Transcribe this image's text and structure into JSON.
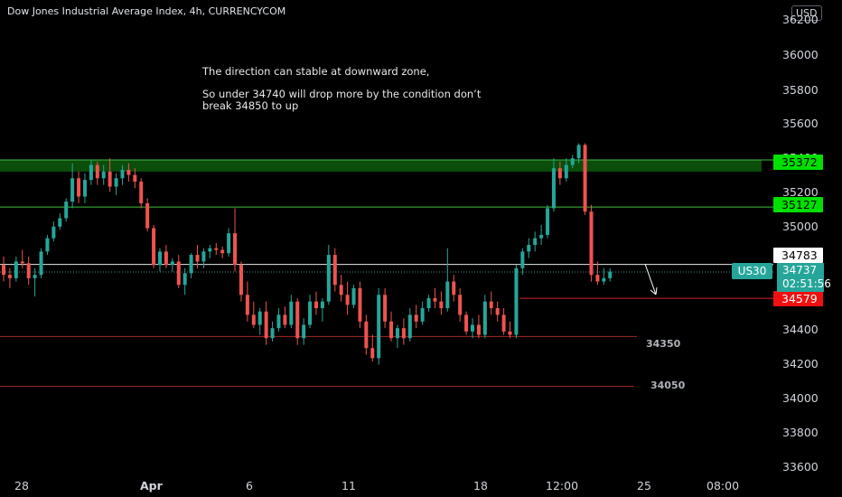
{
  "header": {
    "title": "Dow Jones Industrial Average Index, 4h, CURRENCYCOM",
    "currency_badge": "USD"
  },
  "annotations": {
    "line1": "The direction can stable at downward zone,",
    "line2": "So under 34740 will drop more by the condition don’t",
    "line3": "break 34850 to up"
  },
  "chart_data": {
    "type": "candlestick",
    "y_axis_ticks": [
      "36200",
      "36000",
      "35800",
      "35600",
      "35400",
      "35200",
      "35000",
      "34800",
      "34600",
      "34400",
      "34200",
      "34000",
      "33800",
      "33600"
    ],
    "x_axis_ticks": [
      "28",
      "Apr",
      "6",
      "11",
      "18",
      "12:00",
      "25",
      "08:00"
    ],
    "ylim": [
      33560,
      36240
    ],
    "levels": [
      {
        "name": "resistance-zone",
        "value": 35385,
        "label": "35372",
        "color": "#00ff00"
      },
      {
        "name": "level-35127",
        "value": 35127,
        "label": "35127",
        "color": "#4caf50"
      },
      {
        "name": "level-34783",
        "value": 34783,
        "label": "34783",
        "color": "#ffffff"
      },
      {
        "name": "level-34579",
        "value": 34579,
        "label": "34579",
        "color": "#ff0000"
      },
      {
        "name": "level-34350",
        "value": 34350,
        "label": "34350",
        "color": "#c62828"
      },
      {
        "name": "level-34050",
        "value": 34050,
        "label": "34050",
        "color": "#c62828"
      }
    ],
    "current": {
      "symbol": "US30",
      "price": "34737",
      "countdown": "02:51:56",
      "value": 34737
    },
    "candles": [
      [
        34780,
        34830,
        34680,
        34720
      ],
      [
        34720,
        34760,
        34640,
        34700
      ],
      [
        34700,
        34830,
        34680,
        34800
      ],
      [
        34800,
        34870,
        34760,
        34790
      ],
      [
        34790,
        34830,
        34660,
        34700
      ],
      [
        34700,
        34760,
        34590,
        34720
      ],
      [
        34720,
        34880,
        34700,
        34860
      ],
      [
        34860,
        34960,
        34840,
        34940
      ],
      [
        34940,
        35040,
        34920,
        35010
      ],
      [
        35010,
        35090,
        34990,
        35060
      ],
      [
        35060,
        35180,
        35040,
        35160
      ],
      [
        35160,
        35390,
        35120,
        35300
      ],
      [
        35300,
        35340,
        35150,
        35190
      ],
      [
        35190,
        35330,
        35150,
        35290
      ],
      [
        35290,
        35410,
        35260,
        35380
      ],
      [
        35380,
        35400,
        35260,
        35300
      ],
      [
        35300,
        35380,
        35260,
        35340
      ],
      [
        35340,
        35420,
        35220,
        35250
      ],
      [
        35250,
        35330,
        35200,
        35300
      ],
      [
        35300,
        35380,
        35260,
        35350
      ],
      [
        35350,
        35390,
        35280,
        35320
      ],
      [
        35320,
        35360,
        35240,
        35280
      ],
      [
        35280,
        35300,
        35120,
        35150
      ],
      [
        35150,
        35180,
        34980,
        35000
      ],
      [
        35000,
        35020,
        34760,
        34780
      ],
      [
        34780,
        34880,
        34740,
        34860
      ],
      [
        34860,
        34900,
        34760,
        34780
      ],
      [
        34780,
        34820,
        34740,
        34800
      ],
      [
        34800,
        34840,
        34640,
        34660
      ],
      [
        34660,
        34760,
        34600,
        34730
      ],
      [
        34730,
        34850,
        34700,
        34840
      ],
      [
        34840,
        34900,
        34760,
        34800
      ],
      [
        34800,
        34880,
        34760,
        34860
      ],
      [
        34860,
        34900,
        34820,
        34880
      ],
      [
        34880,
        34910,
        34840,
        34870
      ],
      [
        34870,
        34890,
        34820,
        34850
      ],
      [
        34850,
        35000,
        34830,
        34970
      ],
      [
        34970,
        35120,
        34740,
        34780
      ],
      [
        34780,
        34800,
        34560,
        34600
      ],
      [
        34600,
        34680,
        34440,
        34480
      ],
      [
        34480,
        34560,
        34400,
        34420
      ],
      [
        34420,
        34520,
        34360,
        34500
      ],
      [
        34500,
        34560,
        34300,
        34340
      ],
      [
        34340,
        34440,
        34320,
        34400
      ],
      [
        34400,
        34520,
        34380,
        34480
      ],
      [
        34480,
        34530,
        34400,
        34420
      ],
      [
        34420,
        34600,
        34400,
        34560
      ],
      [
        34560,
        34580,
        34300,
        34340
      ],
      [
        34340,
        34460,
        34300,
        34420
      ],
      [
        34420,
        34600,
        34400,
        34560
      ],
      [
        34560,
        34620,
        34480,
        34520
      ],
      [
        34520,
        34580,
        34440,
        34560
      ],
      [
        34560,
        34900,
        34540,
        34840
      ],
      [
        34840,
        34880,
        34620,
        34660
      ],
      [
        34660,
        34720,
        34560,
        34600
      ],
      [
        34600,
        34680,
        34480,
        34540
      ],
      [
        34540,
        34660,
        34520,
        34640
      ],
      [
        34640,
        34680,
        34400,
        34440
      ],
      [
        34440,
        34480,
        34240,
        34280
      ],
      [
        34280,
        34360,
        34200,
        34220
      ],
      [
        34220,
        34640,
        34180,
        34600
      ],
      [
        34600,
        34640,
        34400,
        34440
      ],
      [
        34440,
        34500,
        34320,
        34340
      ],
      [
        34340,
        34420,
        34280,
        34400
      ],
      [
        34400,
        34460,
        34300,
        34340
      ],
      [
        34340,
        34520,
        34320,
        34480
      ],
      [
        34480,
        34540,
        34400,
        34440
      ],
      [
        34440,
        34560,
        34420,
        34520
      ],
      [
        34520,
        34600,
        34500,
        34580
      ],
      [
        34580,
        34640,
        34520,
        34560
      ],
      [
        34560,
        34620,
        34480,
        34520
      ],
      [
        34520,
        34880,
        34500,
        34680
      ],
      [
        34680,
        34720,
        34560,
        34600
      ],
      [
        34600,
        34640,
        34440,
        34480
      ],
      [
        34480,
        34500,
        34360,
        34380
      ],
      [
        34380,
        34460,
        34340,
        34420
      ],
      [
        34420,
        34480,
        34340,
        34360
      ],
      [
        34360,
        34600,
        34340,
        34560
      ],
      [
        34560,
        34620,
        34480,
        34520
      ],
      [
        34520,
        34560,
        34440,
        34480
      ],
      [
        34480,
        34520,
        34360,
        34380
      ],
      [
        34380,
        34440,
        34340,
        34360
      ],
      [
        34360,
        34780,
        34340,
        34760
      ],
      [
        34760,
        34880,
        34720,
        34860
      ],
      [
        34860,
        34940,
        34820,
        34900
      ],
      [
        34900,
        34980,
        34860,
        34940
      ],
      [
        34940,
        35020,
        34900,
        34960
      ],
      [
        34960,
        35140,
        34940,
        35120
      ],
      [
        35120,
        35420,
        35100,
        35360
      ],
      [
        35360,
        35400,
        35260,
        35300
      ],
      [
        35300,
        35420,
        35280,
        35380
      ],
      [
        35380,
        35440,
        35360,
        35420
      ],
      [
        35420,
        35510,
        35390,
        35500
      ],
      [
        35500,
        35510,
        35080,
        35100
      ],
      [
        35100,
        35140,
        34680,
        34720
      ],
      [
        34720,
        34800,
        34660,
        34680
      ],
      [
        34680,
        34760,
        34660,
        34700
      ],
      [
        34700,
        34760,
        34680,
        34740
      ]
    ]
  }
}
